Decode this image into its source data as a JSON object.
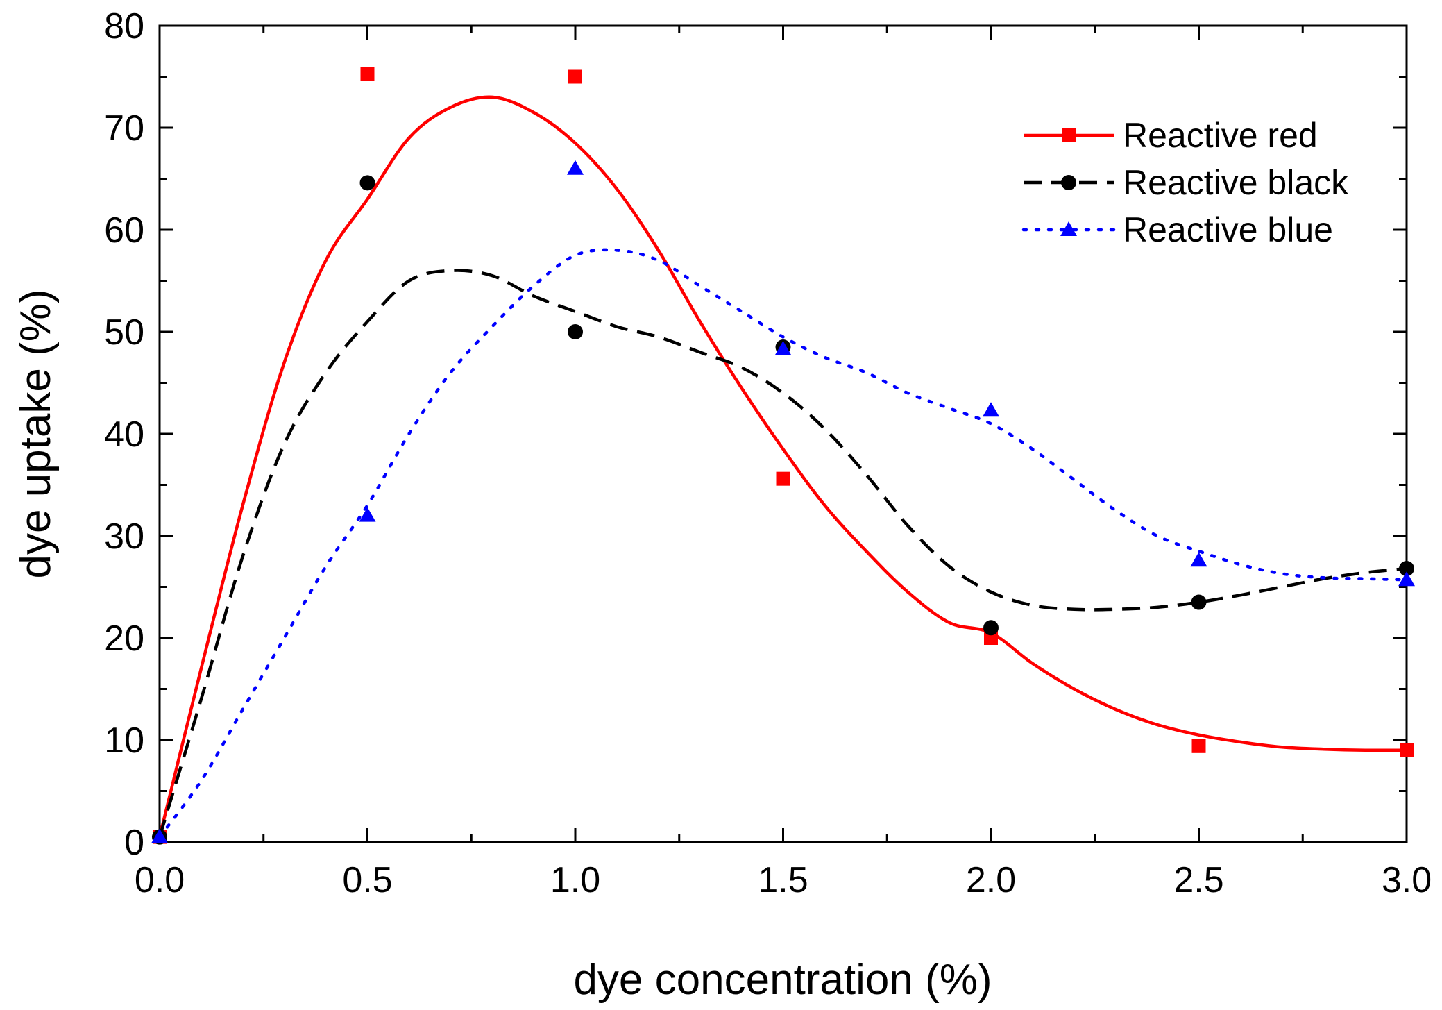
{
  "chart_data": {
    "type": "line",
    "title": "",
    "xlabel": "dye concentration (%)",
    "ylabel": "dye uptake (%)",
    "xlim": [
      0,
      3.0
    ],
    "ylim": [
      0,
      80
    ],
    "xticks": [
      "0.0",
      "0.5",
      "1.0",
      "1.5",
      "2.0",
      "2.5",
      "3.0"
    ],
    "yticks": [
      "0",
      "10",
      "20",
      "30",
      "40",
      "50",
      "60",
      "70",
      "80"
    ],
    "grid": false,
    "legend_position": "top-right",
    "series": [
      {
        "name": "Reactive red",
        "color": "#ff0000",
        "marker": "square",
        "line_style": "solid",
        "x": [
          0,
          0.5,
          1.0,
          1.5,
          2.0,
          2.5,
          3.0
        ],
        "y": [
          0.5,
          75.3,
          75.0,
          35.6,
          20.0,
          9.4,
          9.0
        ],
        "fit_x": [
          0,
          0.1,
          0.2,
          0.3,
          0.4,
          0.5,
          0.6,
          0.7,
          0.8,
          0.9,
          1.0,
          1.1,
          1.2,
          1.3,
          1.4,
          1.5,
          1.6,
          1.7,
          1.8,
          1.9,
          2.0,
          2.1,
          2.2,
          2.3,
          2.4,
          2.5,
          2.6,
          2.7,
          2.8,
          2.9,
          3.0
        ],
        "fit_y": [
          0.5,
          17,
          33,
          47,
          57,
          63,
          69,
          72,
          73,
          71.5,
          68.5,
          64,
          58,
          51,
          44.5,
          38.5,
          33,
          28.5,
          24.5,
          21.5,
          20.5,
          17.5,
          15,
          13,
          11.5,
          10.5,
          9.8,
          9.3,
          9.1,
          9.0,
          9.0
        ]
      },
      {
        "name": "Reactive black",
        "color": "#000000",
        "marker": "circle",
        "line_style": "dashed",
        "x": [
          0,
          0.5,
          1.0,
          1.5,
          2.0,
          2.5,
          3.0
        ],
        "y": [
          0.5,
          64.6,
          50.0,
          48.5,
          21.0,
          23.5,
          26.8
        ],
        "fit_x": [
          0,
          0.1,
          0.2,
          0.3,
          0.4,
          0.5,
          0.6,
          0.7,
          0.8,
          0.9,
          1.0,
          1.1,
          1.2,
          1.3,
          1.4,
          1.5,
          1.6,
          1.7,
          1.8,
          1.9,
          2.0,
          2.1,
          2.2,
          2.3,
          2.4,
          2.5,
          2.6,
          2.7,
          2.8,
          2.9,
          3.0
        ],
        "fit_y": [
          0.5,
          14,
          28,
          39,
          46,
          51,
          55,
          56,
          55.5,
          53.5,
          52,
          50.5,
          49.5,
          48,
          46.5,
          44,
          40.5,
          36,
          31,
          27,
          24.5,
          23.2,
          22.8,
          22.8,
          23.0,
          23.5,
          24.2,
          25.0,
          25.8,
          26.4,
          26.8
        ]
      },
      {
        "name": "Reactive blue",
        "color": "#0000ff",
        "marker": "triangle",
        "line_style": "dotted",
        "x": [
          0,
          0.5,
          1.0,
          1.5,
          2.0,
          2.5,
          3.0
        ],
        "y": [
          0.5,
          32.0,
          66.0,
          48.3,
          42.3,
          27.6,
          25.7
        ],
        "fit_x": [
          0,
          0.1,
          0.2,
          0.3,
          0.4,
          0.5,
          0.6,
          0.7,
          0.8,
          0.9,
          1.0,
          1.1,
          1.2,
          1.3,
          1.4,
          1.5,
          1.6,
          1.7,
          1.8,
          1.9,
          2.0,
          2.1,
          2.2,
          2.3,
          2.4,
          2.5,
          2.6,
          2.7,
          2.8,
          2.9,
          3.0
        ],
        "fit_y": [
          0.5,
          6,
          13,
          20,
          27,
          33,
          40,
          46,
          50.5,
          54.5,
          57.5,
          58,
          57,
          54.5,
          52,
          49.5,
          47.5,
          46,
          44,
          42.5,
          41,
          38.5,
          35.5,
          32.5,
          30,
          28.5,
          27.2,
          26.3,
          25.9,
          25.8,
          25.7
        ]
      }
    ]
  }
}
